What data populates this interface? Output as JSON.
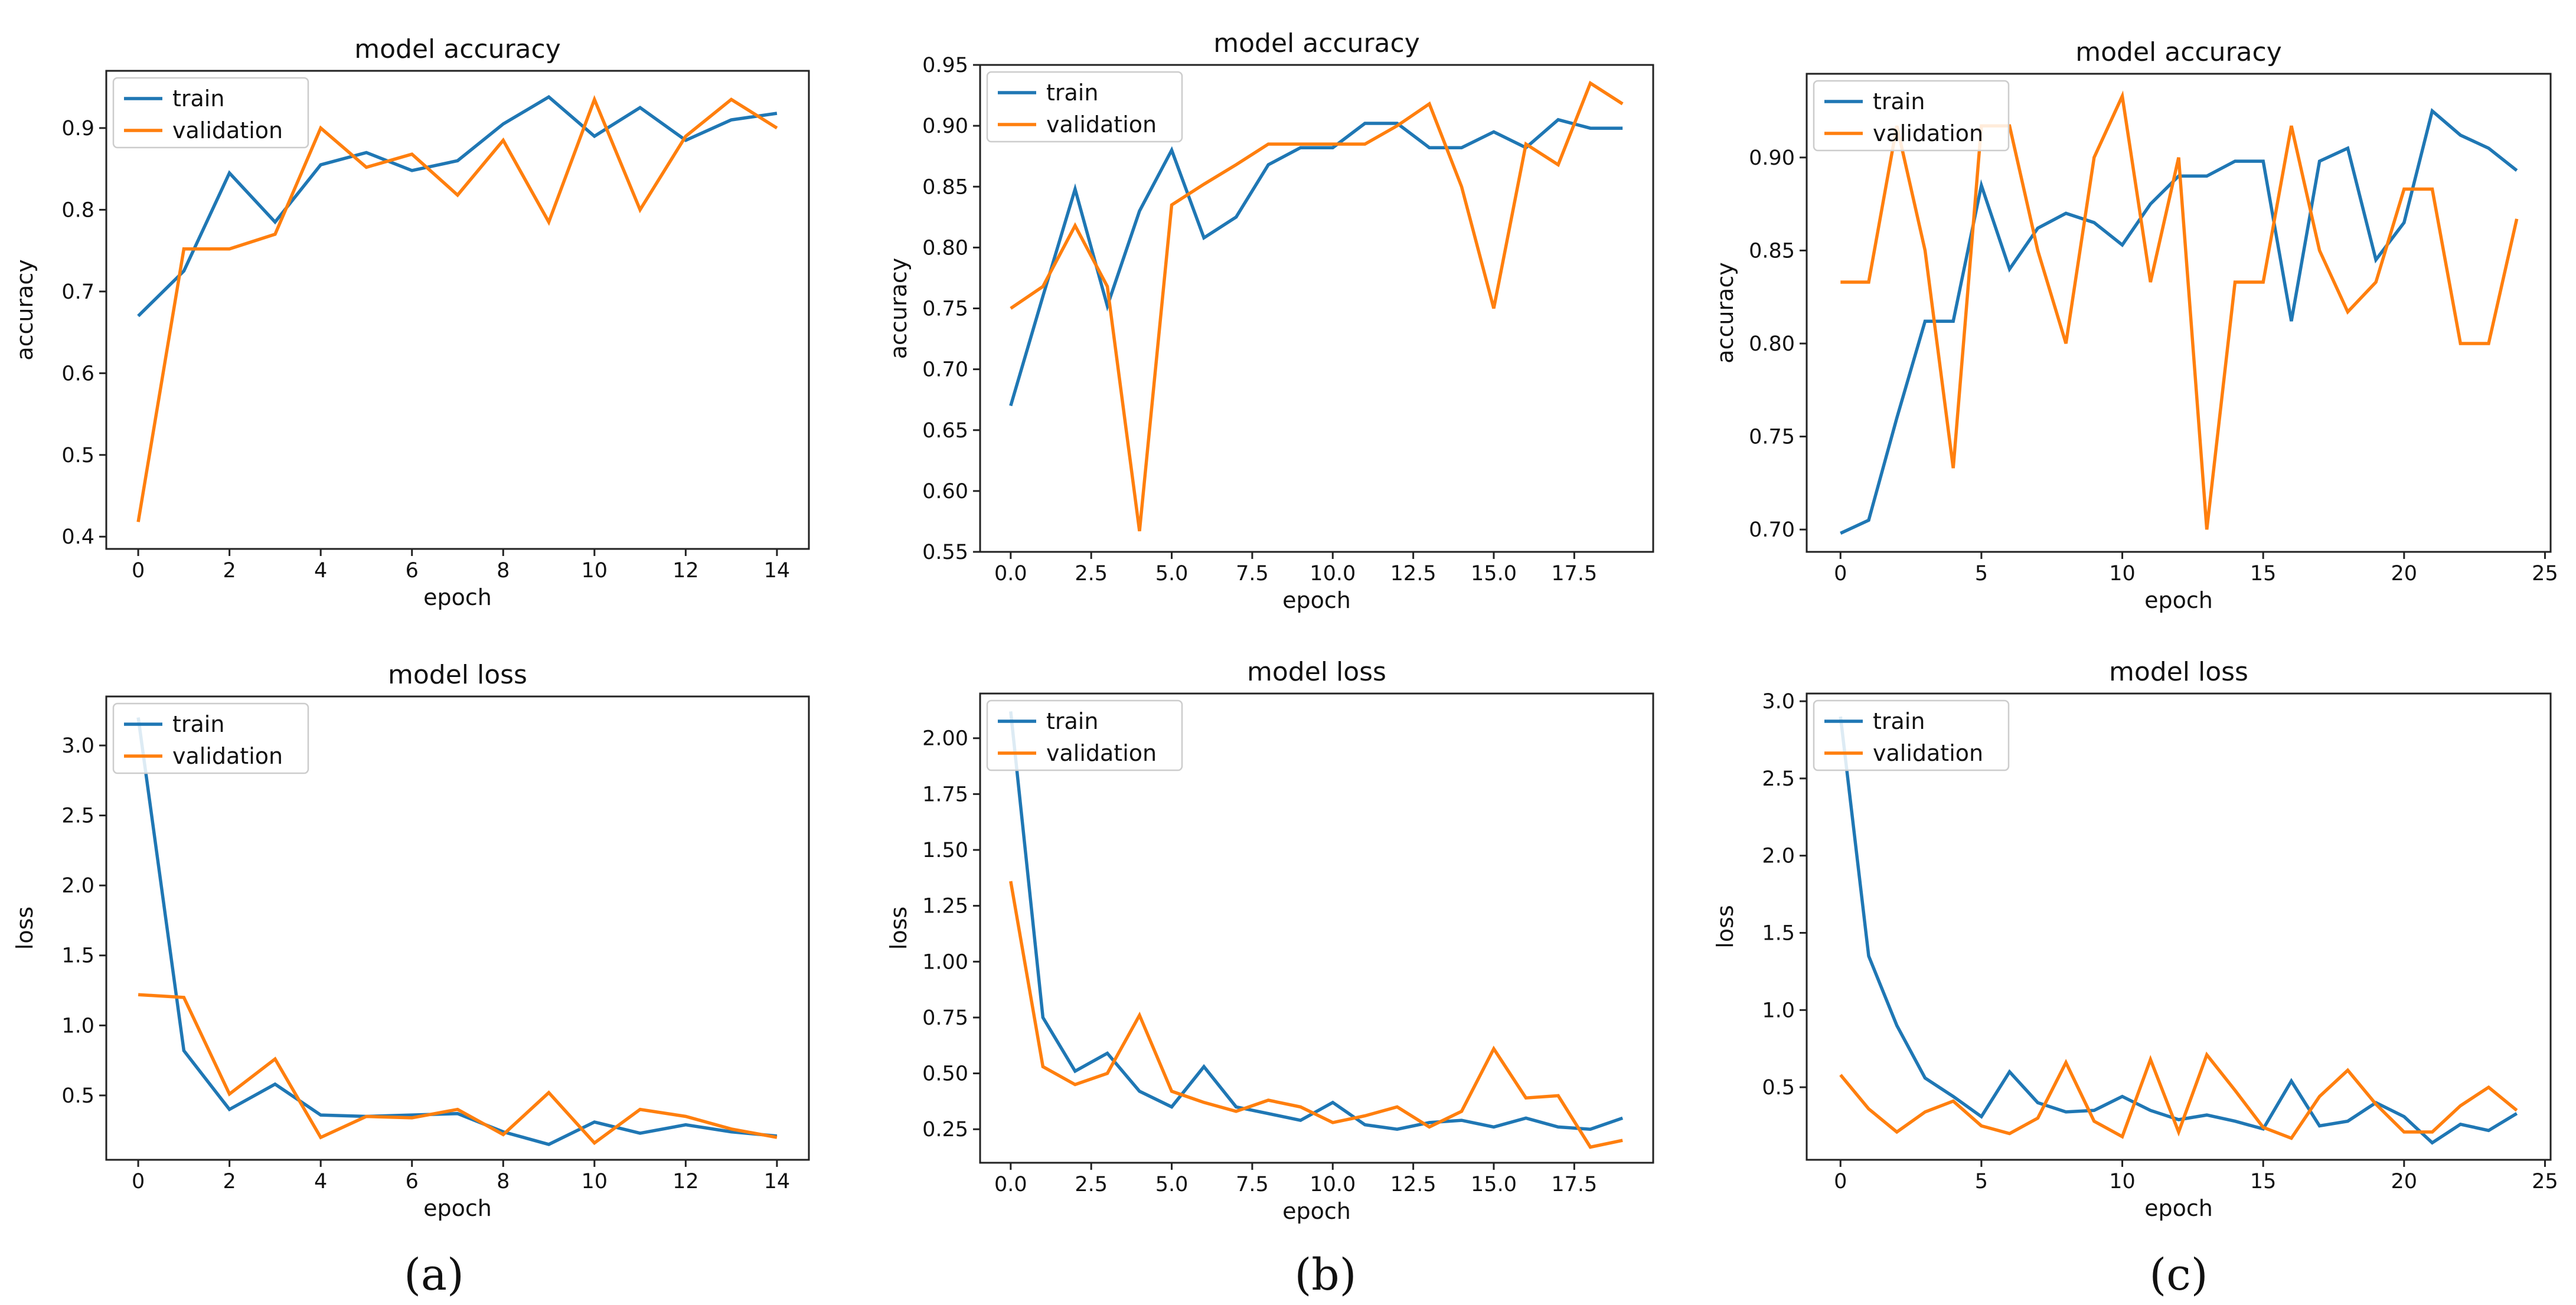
{
  "panel_labels": [
    "(a)",
    "(b)",
    "(c)"
  ],
  "colors": {
    "train": "#1f77b4",
    "validation": "#ff7f0e"
  },
  "chart_data": [
    {
      "id": "a-accuracy",
      "type": "line",
      "title": "model accuracy",
      "xlabel": "epoch",
      "ylabel": "accuracy",
      "xlim": [
        -0.7,
        14.7
      ],
      "ylim": [
        0.385,
        0.97
      ],
      "xticks": [
        0,
        2,
        4,
        6,
        8,
        10,
        12,
        14
      ],
      "xtick_labels": [
        "0",
        "2",
        "4",
        "6",
        "8",
        "10",
        "12",
        "14"
      ],
      "yticks": [
        0.4,
        0.5,
        0.6,
        0.7,
        0.8,
        0.9
      ],
      "ytick_labels": [
        "0.4",
        "0.5",
        "0.6",
        "0.7",
        "0.8",
        "0.9"
      ],
      "legend_loc": "upper left",
      "series": [
        {
          "name": "train",
          "x": [
            0,
            1,
            2,
            3,
            4,
            5,
            6,
            7,
            8,
            9,
            10,
            11,
            12,
            13,
            14
          ],
          "values": [
            0.67,
            0.725,
            0.845,
            0.785,
            0.855,
            0.87,
            0.848,
            0.86,
            0.905,
            0.938,
            0.89,
            0.925,
            0.885,
            0.91,
            0.918
          ]
        },
        {
          "name": "validation",
          "x": [
            0,
            1,
            2,
            3,
            4,
            5,
            6,
            7,
            8,
            9,
            10,
            11,
            12,
            13,
            14
          ],
          "values": [
            0.418,
            0.752,
            0.752,
            0.77,
            0.9,
            0.852,
            0.868,
            0.818,
            0.885,
            0.785,
            0.935,
            0.8,
            0.89,
            0.935,
            0.9
          ]
        }
      ]
    },
    {
      "id": "b-accuracy",
      "type": "line",
      "title": "model accuracy",
      "xlabel": "epoch",
      "ylabel": "accuracy",
      "xlim": [
        -0.95,
        19.95
      ],
      "ylim": [
        0.55,
        0.95
      ],
      "xticks": [
        0,
        2.5,
        5,
        7.5,
        10,
        12.5,
        15,
        17.5
      ],
      "xtick_labels": [
        "0.0",
        "2.5",
        "5.0",
        "7.5",
        "10.0",
        "12.5",
        "15.0",
        "17.5"
      ],
      "yticks": [
        0.55,
        0.6,
        0.65,
        0.7,
        0.75,
        0.8,
        0.85,
        0.9,
        0.95
      ],
      "ytick_labels": [
        "0.55",
        "0.60",
        "0.65",
        "0.70",
        "0.75",
        "0.80",
        "0.85",
        "0.90",
        "0.95"
      ],
      "legend_loc": "upper left",
      "series": [
        {
          "name": "train",
          "x": [
            0,
            1,
            2,
            3,
            4,
            5,
            6,
            7,
            8,
            9,
            10,
            11,
            12,
            13,
            14,
            15,
            16,
            17,
            18,
            19
          ],
          "values": [
            0.67,
            0.76,
            0.848,
            0.752,
            0.83,
            0.88,
            0.808,
            0.825,
            0.868,
            0.882,
            0.882,
            0.902,
            0.902,
            0.882,
            0.882,
            0.895,
            0.882,
            0.905,
            0.898,
            0.898
          ]
        },
        {
          "name": "validation",
          "x": [
            0,
            1,
            2,
            3,
            4,
            5,
            6,
            7,
            8,
            9,
            10,
            11,
            12,
            13,
            14,
            15,
            16,
            17,
            18,
            19
          ],
          "values": [
            0.75,
            0.768,
            0.818,
            0.768,
            0.567,
            0.835,
            0.852,
            0.868,
            0.885,
            0.885,
            0.885,
            0.885,
            0.9,
            0.918,
            0.85,
            0.75,
            0.885,
            0.868,
            0.935,
            0.918
          ]
        }
      ]
    },
    {
      "id": "c-accuracy",
      "type": "line",
      "title": "model accuracy",
      "xlabel": "epoch",
      "ylabel": "accuracy",
      "xlim": [
        -1.2,
        25.2
      ],
      "ylim": [
        0.688,
        0.945
      ],
      "xticks": [
        0,
        5,
        10,
        15,
        20,
        25
      ],
      "xtick_labels": [
        "0",
        "5",
        "10",
        "15",
        "20",
        "25"
      ],
      "yticks": [
        0.7,
        0.75,
        0.8,
        0.85,
        0.9
      ],
      "ytick_labels": [
        "0.70",
        "0.75",
        "0.80",
        "0.85",
        "0.90"
      ],
      "legend_loc": "upper left",
      "series": [
        {
          "name": "train",
          "x": [
            0,
            1,
            2,
            3,
            4,
            5,
            6,
            7,
            8,
            9,
            10,
            11,
            12,
            13,
            14,
            15,
            16,
            17,
            18,
            19,
            20,
            21,
            22,
            23,
            24
          ],
          "values": [
            0.698,
            0.705,
            0.76,
            0.812,
            0.812,
            0.885,
            0.84,
            0.862,
            0.87,
            0.865,
            0.853,
            0.875,
            0.89,
            0.89,
            0.898,
            0.898,
            0.812,
            0.898,
            0.905,
            0.845,
            0.865,
            0.925,
            0.912,
            0.905,
            0.893
          ]
        },
        {
          "name": "validation",
          "x": [
            0,
            1,
            2,
            3,
            4,
            5,
            6,
            7,
            8,
            9,
            10,
            11,
            12,
            13,
            14,
            15,
            16,
            17,
            18,
            19,
            20,
            21,
            22,
            23,
            24
          ],
          "values": [
            0.833,
            0.833,
            0.917,
            0.85,
            0.733,
            0.917,
            0.917,
            0.85,
            0.8,
            0.9,
            0.933,
            0.833,
            0.9,
            0.7,
            0.833,
            0.833,
            0.917,
            0.85,
            0.817,
            0.833,
            0.883,
            0.883,
            0.8,
            0.8,
            0.867
          ]
        }
      ]
    },
    {
      "id": "a-loss",
      "type": "line",
      "title": "model loss",
      "xlabel": "epoch",
      "ylabel": "loss",
      "xlim": [
        -0.7,
        14.7
      ],
      "ylim": [
        0.04,
        3.35
      ],
      "xticks": [
        0,
        2,
        4,
        6,
        8,
        10,
        12,
        14
      ],
      "xtick_labels": [
        "0",
        "2",
        "4",
        "6",
        "8",
        "10",
        "12",
        "14"
      ],
      "yticks": [
        0.5,
        1.0,
        1.5,
        2.0,
        2.5,
        3.0
      ],
      "ytick_labels": [
        "0.5",
        "1.0",
        "1.5",
        "2.0",
        "2.5",
        "3.0"
      ],
      "legend_loc": "upper left",
      "series": [
        {
          "name": "train",
          "x": [
            0,
            1,
            2,
            3,
            4,
            5,
            6,
            7,
            8,
            9,
            10,
            11,
            12,
            13,
            14
          ],
          "values": [
            3.2,
            0.82,
            0.4,
            0.58,
            0.36,
            0.35,
            0.36,
            0.37,
            0.24,
            0.15,
            0.31,
            0.23,
            0.29,
            0.24,
            0.21
          ]
        },
        {
          "name": "validation",
          "x": [
            0,
            1,
            2,
            3,
            4,
            5,
            6,
            7,
            8,
            9,
            10,
            11,
            12,
            13,
            14
          ],
          "values": [
            1.22,
            1.2,
            0.51,
            0.76,
            0.2,
            0.35,
            0.34,
            0.4,
            0.22,
            0.52,
            0.16,
            0.4,
            0.35,
            0.26,
            0.2
          ]
        }
      ]
    },
    {
      "id": "b-loss",
      "type": "line",
      "title": "model loss",
      "xlabel": "epoch",
      "ylabel": "loss",
      "xlim": [
        -0.95,
        19.95
      ],
      "ylim": [
        0.1,
        2.2
      ],
      "xticks": [
        0,
        2.5,
        5,
        7.5,
        10,
        12.5,
        15,
        17.5
      ],
      "xtick_labels": [
        "0.0",
        "2.5",
        "5.0",
        "7.5",
        "10.0",
        "12.5",
        "15.0",
        "17.5"
      ],
      "yticks": [
        0.25,
        0.5,
        0.75,
        1.0,
        1.25,
        1.5,
        1.75,
        2.0
      ],
      "ytick_labels": [
        "0.25",
        "0.50",
        "0.75",
        "1.00",
        "1.25",
        "1.50",
        "1.75",
        "2.00"
      ],
      "legend_loc": "upper left",
      "series": [
        {
          "name": "train",
          "x": [
            0,
            1,
            2,
            3,
            4,
            5,
            6,
            7,
            8,
            9,
            10,
            11,
            12,
            13,
            14,
            15,
            16,
            17,
            18,
            19
          ],
          "values": [
            2.12,
            0.75,
            0.51,
            0.59,
            0.42,
            0.35,
            0.53,
            0.35,
            0.32,
            0.29,
            0.37,
            0.27,
            0.25,
            0.28,
            0.29,
            0.26,
            0.3,
            0.26,
            0.25,
            0.3
          ]
        },
        {
          "name": "validation",
          "x": [
            0,
            1,
            2,
            3,
            4,
            5,
            6,
            7,
            8,
            9,
            10,
            11,
            12,
            13,
            14,
            15,
            16,
            17,
            18,
            19
          ],
          "values": [
            1.36,
            0.53,
            0.45,
            0.5,
            0.76,
            0.42,
            0.37,
            0.33,
            0.38,
            0.35,
            0.28,
            0.31,
            0.35,
            0.26,
            0.33,
            0.61,
            0.39,
            0.4,
            0.17,
            0.2
          ]
        }
      ]
    },
    {
      "id": "c-loss",
      "type": "line",
      "title": "model loss",
      "xlabel": "epoch",
      "ylabel": "loss",
      "xlim": [
        -1.2,
        25.2
      ],
      "ylim": [
        0.03,
        3.05
      ],
      "xticks": [
        0,
        5,
        10,
        15,
        20,
        25
      ],
      "xtick_labels": [
        "0",
        "5",
        "10",
        "15",
        "20",
        "25"
      ],
      "yticks": [
        0.5,
        1.0,
        1.5,
        2.0,
        2.5,
        3.0
      ],
      "ytick_labels": [
        "0.5",
        "1.0",
        "1.5",
        "2.0",
        "2.5",
        "3.0"
      ],
      "legend_loc": "upper left",
      "series": [
        {
          "name": "train",
          "x": [
            0,
            1,
            2,
            3,
            4,
            5,
            6,
            7,
            8,
            9,
            10,
            11,
            12,
            13,
            14,
            15,
            16,
            17,
            18,
            19,
            20,
            21,
            22,
            23,
            24
          ],
          "values": [
            2.9,
            1.35,
            0.9,
            0.56,
            0.44,
            0.31,
            0.6,
            0.4,
            0.34,
            0.35,
            0.44,
            0.35,
            0.29,
            0.32,
            0.28,
            0.23,
            0.54,
            0.25,
            0.28,
            0.4,
            0.31,
            0.14,
            0.26,
            0.22,
            0.33
          ]
        },
        {
          "name": "validation",
          "x": [
            0,
            1,
            2,
            3,
            4,
            5,
            6,
            7,
            8,
            9,
            10,
            11,
            12,
            13,
            14,
            15,
            16,
            17,
            18,
            19,
            20,
            21,
            22,
            23,
            24
          ],
          "values": [
            0.58,
            0.36,
            0.21,
            0.34,
            0.41,
            0.25,
            0.2,
            0.3,
            0.66,
            0.28,
            0.18,
            0.68,
            0.21,
            0.71,
            0.48,
            0.24,
            0.17,
            0.44,
            0.61,
            0.39,
            0.21,
            0.21,
            0.38,
            0.5,
            0.35
          ]
        }
      ]
    }
  ]
}
